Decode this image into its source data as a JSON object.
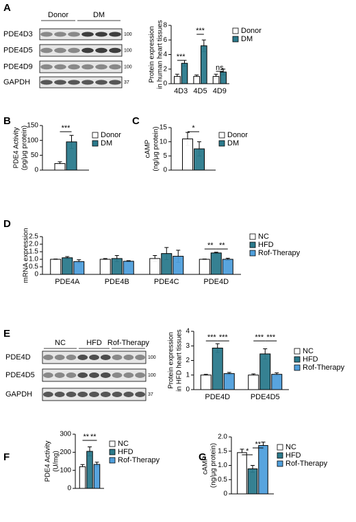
{
  "panel_labels": [
    "A",
    "B",
    "C",
    "D",
    "E",
    "F",
    "G"
  ],
  "blots": [
    {
      "groups": [
        "Donor",
        "DM"
      ],
      "rows": [
        "PDE4D3",
        "PDE4D5",
        "PDE4D9",
        "GAPDH"
      ],
      "markers": [
        "100",
        "100",
        "100",
        "37"
      ]
    },
    {
      "groups": [
        "NC",
        "HFD",
        "Rof-Therapy"
      ],
      "rows": [
        "PDE4D",
        "PDE4D5",
        "GAPDH"
      ],
      "markers": [
        "100",
        "100",
        "37"
      ]
    }
  ],
  "chart_data": [
    {
      "type": "bar",
      "ylabel": [
        "Protein expression",
        "in human heart tissues"
      ],
      "categories": [
        "4D3",
        "4D5",
        "4D9"
      ],
      "series": [
        {
          "name": "Donor",
          "color": "#ffffff",
          "values": [
            1.0,
            1.0,
            1.0
          ],
          "errors": [
            0.3,
            0.2,
            0.3
          ]
        },
        {
          "name": "DM",
          "color": "#2b7a8c",
          "values": [
            2.8,
            5.2,
            1.6
          ],
          "errors": [
            0.4,
            0.8,
            0.4
          ]
        }
      ],
      "ylim": [
        0,
        8
      ],
      "yticks": [
        0,
        2,
        4,
        6,
        8
      ],
      "annotations": [
        "***",
        "***",
        "ns"
      ]
    },
    {
      "type": "bar",
      "ylabel": [
        "PDE4 Activity",
        "(pg/μg protein)"
      ],
      "categories": [
        null
      ],
      "series": [
        {
          "name": "Donor",
          "color": "#ffffff",
          "values": [
            22
          ],
          "errors": [
            6
          ]
        },
        {
          "name": "DM",
          "color": "#2b7a8c",
          "values": [
            95
          ],
          "errors": [
            22
          ]
        }
      ],
      "ylim": [
        0,
        150
      ],
      "yticks": [
        0,
        50,
        100,
        150
      ],
      "annotations": [
        "***"
      ]
    },
    {
      "type": "bar",
      "ylabel": [
        "cAMP",
        "(ng/μg protein)"
      ],
      "categories": [
        null
      ],
      "series": [
        {
          "name": "Donor",
          "color": "#ffffff",
          "values": [
            11
          ],
          "errors": [
            2.3
          ]
        },
        {
          "name": "DM",
          "color": "#2b7a8c",
          "values": [
            7.5
          ],
          "errors": [
            2.5
          ]
        }
      ],
      "ylim": [
        0,
        15
      ],
      "yticks": [
        0,
        5,
        10,
        15
      ],
      "annotations": [
        "*"
      ]
    },
    {
      "type": "bar",
      "ylabel": [
        "mRNA expression"
      ],
      "categories": [
        "PDE4A",
        "PDE4B",
        "PDE4C",
        "PDE4D"
      ],
      "series": [
        {
          "name": "NC",
          "color": "#ffffff",
          "values": [
            1.0,
            1.0,
            1.05,
            1.0
          ],
          "errors": [
            0.02,
            0.05,
            0.2,
            0.02
          ]
        },
        {
          "name": "HFD",
          "color": "#2b7a8c",
          "values": [
            1.1,
            1.05,
            1.38,
            1.42
          ],
          "errors": [
            0.08,
            0.2,
            0.4,
            0.05
          ]
        },
        {
          "name": "Rof-Therapy",
          "color": "#4f9fdc",
          "values": [
            0.85,
            0.87,
            1.2,
            1.0
          ],
          "errors": [
            0.12,
            0.04,
            0.4,
            0.07
          ]
        }
      ],
      "ylim": [
        0,
        2.5
      ],
      "yticks": [
        0,
        0.5,
        {
          "value": 1,
          "label": "1.0"
        },
        1.5,
        {
          "value": 2,
          "label": "2.0"
        },
        2.5
      ],
      "annotations": [
        "**",
        "**"
      ]
    },
    {
      "type": "bar",
      "ylabel": [
        "Protein expression",
        "in HFD heart tissues"
      ],
      "categories": [
        "PDE4D",
        "PDE4D5"
      ],
      "series": [
        {
          "name": "NC",
          "color": "#ffffff",
          "values": [
            1.0,
            1.0
          ],
          "errors": [
            0.05,
            0.08
          ]
        },
        {
          "name": "HFD",
          "color": "#2b7a8c",
          "values": [
            2.85,
            2.45
          ],
          "errors": [
            0.3,
            0.35
          ]
        },
        {
          "name": "Rof-Therapy",
          "color": "#4f9fdc",
          "values": [
            1.1,
            1.05
          ],
          "errors": [
            0.08,
            0.1
          ]
        }
      ],
      "ylim": [
        0,
        4
      ],
      "yticks": [
        0,
        1,
        2,
        3,
        4
      ],
      "annotations": [
        "***",
        "***",
        "***",
        "***"
      ]
    },
    {
      "type": "bar",
      "ylabel": [
        "PDE4 Activity",
        "(U/mg)"
      ],
      "categories": [
        null
      ],
      "series": [
        {
          "name": "NC",
          "color": "#ffffff",
          "values": [
            120
          ],
          "errors": [
            12
          ]
        },
        {
          "name": "HFD",
          "color": "#2b7a8c",
          "values": [
            205
          ],
          "errors": [
            25
          ]
        },
        {
          "name": "Rof-Therapy",
          "color": "#4f9fdc",
          "values": [
            133
          ],
          "errors": [
            12
          ]
        }
      ],
      "ylim": [
        0,
        300
      ],
      "yticks": [
        0,
        100,
        200,
        300
      ],
      "annotations": [
        "**",
        "**"
      ]
    },
    {
      "type": "bar",
      "ylabel": [
        "cAMP",
        "(ng/μg protein)"
      ],
      "categories": [
        null
      ],
      "series": [
        {
          "name": "NC",
          "color": "#ffffff",
          "values": [
            1.45
          ],
          "errors": [
            0.12
          ]
        },
        {
          "name": "HFD",
          "color": "#2b7a8c",
          "values": [
            0.88
          ],
          "errors": [
            0.12
          ]
        },
        {
          "name": "Rof-Therapy",
          "color": "#4f9fdc",
          "values": [
            1.7
          ],
          "errors": [
            0.12
          ]
        }
      ],
      "ylim": [
        0,
        2.0
      ],
      "yticks": [
        0,
        0.5,
        {
          "value": 1,
          "label": "1.0"
        },
        1.5,
        {
          "value": 2,
          "label": "2.0"
        }
      ],
      "annotations": [
        "*",
        "**"
      ]
    }
  ]
}
